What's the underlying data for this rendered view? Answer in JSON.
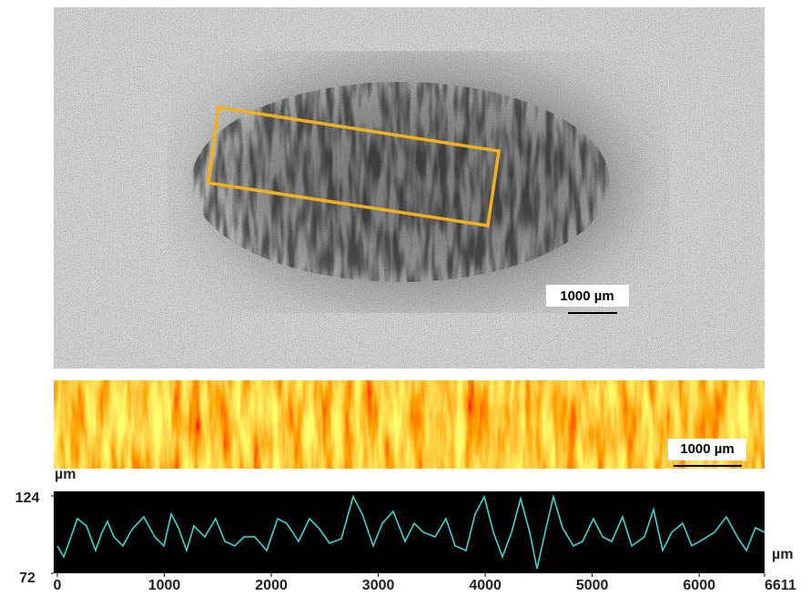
{
  "images": {
    "micrograph_scale_bar": "1000 µm",
    "height_map_scale_bar": "1000 µm"
  },
  "chart_data": {
    "type": "line",
    "ylabel": "µm",
    "xlabel": "µm",
    "color": "#3dd6d0",
    "xlim": [
      0,
      6611
    ],
    "xticks": [
      0,
      1000,
      2000,
      3000,
      4000,
      5000,
      6000,
      6611
    ],
    "ylim": [
      72,
      124
    ],
    "yticks": [
      72,
      124
    ],
    "x": [
      0,
      60,
      128,
      187,
      272,
      357,
      417,
      468,
      528,
      613,
      698,
      808,
      910,
      996,
      1064,
      1132,
      1208,
      1276,
      1378,
      1480,
      1566,
      1659,
      1744,
      1846,
      1957,
      2059,
      2144,
      2255,
      2357,
      2442,
      2544,
      2655,
      2765,
      2850,
      2952,
      3038,
      3140,
      3250,
      3335,
      3420,
      3531,
      3633,
      3718,
      3820,
      3905,
      3990,
      4076,
      4161,
      4246,
      4331,
      4416,
      4484,
      4569,
      4637,
      4722,
      4824,
      4909,
      5011,
      5097,
      5182,
      5284,
      5369,
      5488,
      5573,
      5658,
      5743,
      5845,
      5930,
      6032,
      6143,
      6254,
      6356,
      6441,
      6526,
      6611
    ],
    "values": [
      90.4,
      83.0,
      96.5,
      108.7,
      103.8,
      87.3,
      99.5,
      106.9,
      96.5,
      90.4,
      101.4,
      109.9,
      96.5,
      90.4,
      111.8,
      102.6,
      87.3,
      103.8,
      96.5,
      108.7,
      93.4,
      90.4,
      96.5,
      96.5,
      87.3,
      108.7,
      105.6,
      93.4,
      108.7,
      102.6,
      92.2,
      95.2,
      123.5,
      111.8,
      90.4,
      105.6,
      113.6,
      93.4,
      105.6,
      99.5,
      96.5,
      108.7,
      90.4,
      87.3,
      111.8,
      123.5,
      99.5,
      83.0,
      99.5,
      122.2,
      99.5,
      75.1,
      102.6,
      123.5,
      102.6,
      90.4,
      93.4,
      108.7,
      96.5,
      93.4,
      109.9,
      90.4,
      96.5,
      114.8,
      87.3,
      99.5,
      105.6,
      90.4,
      94.6,
      99.5,
      109.9,
      96.5,
      87.3,
      102.6,
      99.5
    ]
  }
}
